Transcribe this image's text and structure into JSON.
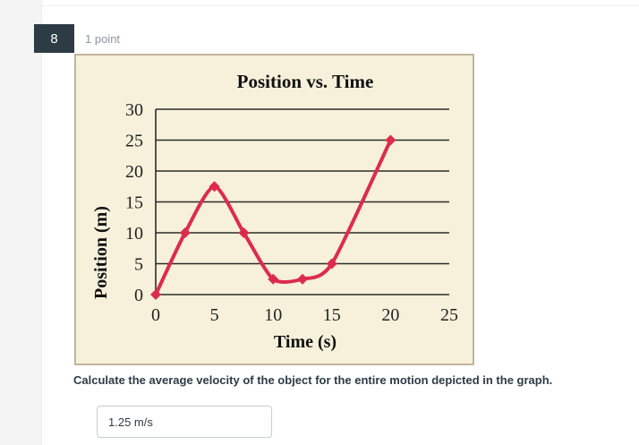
{
  "question": {
    "number": "8",
    "points": "1 point",
    "prompt": "Calculate the average velocity of the object for the entire motion depicted in the graph.",
    "answer_value": "1.25 m/s"
  },
  "colors": {
    "badge_bg": "#2d3b45",
    "chart_bg": "#f7f1db",
    "chart_border": "#c2b59b",
    "line": "#dd2b4e",
    "grid": "#2b2b2b"
  },
  "chart_data": {
    "type": "line",
    "title": "Position vs. Time",
    "xlabel": "Time (s)",
    "ylabel": "Position (m)",
    "x_ticks": [
      "0",
      "5",
      "10",
      "15",
      "20",
      "25"
    ],
    "y_ticks": [
      "0",
      "5",
      "10",
      "15",
      "20",
      "25",
      "30"
    ],
    "xlim": [
      0,
      25
    ],
    "ylim": [
      0,
      30
    ],
    "grid": "horizontal",
    "legend": null,
    "series": [
      {
        "name": "Position",
        "x": [
          0,
          2.5,
          5,
          7.5,
          10,
          12.5,
          15,
          20
        ],
        "values": [
          0,
          10,
          17.5,
          10,
          2.5,
          2.5,
          5,
          25
        ]
      }
    ]
  }
}
